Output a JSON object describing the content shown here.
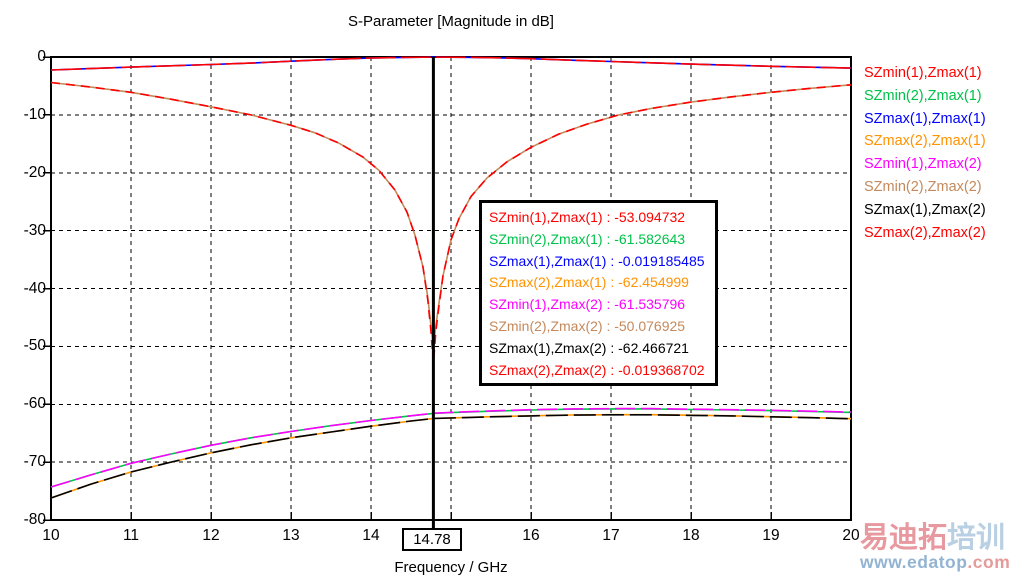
{
  "title": "S-Parameter [Magnitude in dB]",
  "xlabel": "Frequency / GHz",
  "marker": {
    "frequency_ghz": "14.78"
  },
  "colors": {
    "red": "#ff0000",
    "green": "#00c24a",
    "blue": "#0000ff",
    "orange": "#ff9300",
    "magenta": "#ff00ff",
    "tan": "#c4895c",
    "black": "#000000",
    "grid": "#000000",
    "frame": "#000000"
  },
  "legend": [
    {
      "label": "SZmin(1),Zmax(1)",
      "color": "#ff0000"
    },
    {
      "label": "SZmin(2),Zmax(1)",
      "color": "#00c24a"
    },
    {
      "label": "SZmax(1),Zmax(1)",
      "color": "#0000ff"
    },
    {
      "label": "SZmax(2),Zmax(1)",
      "color": "#ff9300"
    },
    {
      "label": "SZmin(1),Zmax(2)",
      "color": "#ff00ff"
    },
    {
      "label": "SZmin(2),Zmax(2)",
      "color": "#c4895c"
    },
    {
      "label": "SZmax(1),Zmax(2)",
      "color": "#000000"
    },
    {
      "label": "SZmax(2),Zmax(2)",
      "color": "#ff0000"
    }
  ],
  "value_box": [
    {
      "label": "SZmin(1),Zmax(1)",
      "value": "-53.094732",
      "color": "#ff0000"
    },
    {
      "label": "SZmin(2),Zmax(1)",
      "value": "-61.582643",
      "color": "#00c24a"
    },
    {
      "label": "SZmax(1),Zmax(1)",
      "value": "-0.019185485",
      "color": "#0000ff"
    },
    {
      "label": "SZmax(2),Zmax(1)",
      "value": "-62.454999",
      "color": "#ff9300"
    },
    {
      "label": "SZmin(1),Zmax(2)",
      "value": "-61.535796",
      "color": "#ff00ff"
    },
    {
      "label": "SZmin(2),Zmax(2)",
      "value": "-50.076925",
      "color": "#c4895c"
    },
    {
      "label": "SZmax(1),Zmax(2)",
      "value": "-62.466721",
      "color": "#000000"
    },
    {
      "label": "SZmax(2),Zmax(2)",
      "value": "-0.019368702",
      "color": "#ff0000"
    }
  ],
  "watermark": {
    "cn_pink": "易迪拓",
    "cn_blue": "培训",
    "url_main": "www.edatop",
    "url_tld": ".com",
    "pink_color": "#e8989f",
    "blue_color": "#b9cfe3",
    "url_main_color": "#92b4d2",
    "url_tld_color": "#e59a9a"
  },
  "chart_data": {
    "type": "line",
    "title": "S-Parameter [Magnitude in dB]",
    "xlabel": "Frequency / GHz",
    "ylabel": "",
    "xlim": [
      10,
      20
    ],
    "ylim": [
      -80,
      0
    ],
    "grid": true,
    "legend_position": "right-outside",
    "marker_x": 14.78,
    "x_ticks": [
      {
        "value": 10,
        "label": "10"
      },
      {
        "value": 11,
        "label": "11"
      },
      {
        "value": 12,
        "label": "12"
      },
      {
        "value": 13,
        "label": "13"
      },
      {
        "value": 14,
        "label": "14"
      },
      {
        "value": 15,
        "label": ""
      },
      {
        "value": 16,
        "label": "16"
      },
      {
        "value": 17,
        "label": "17"
      },
      {
        "value": 18,
        "label": "18"
      },
      {
        "value": 19,
        "label": "19"
      },
      {
        "value": 20,
        "label": "20"
      }
    ],
    "y_ticks": [
      {
        "value": 0,
        "label": "0"
      },
      {
        "value": -10,
        "label": "-10"
      },
      {
        "value": -20,
        "label": "-20"
      },
      {
        "value": -30,
        "label": "-30"
      },
      {
        "value": -40,
        "label": "-40"
      },
      {
        "value": -50,
        "label": "-50"
      },
      {
        "value": -60,
        "label": "-60"
      },
      {
        "value": -70,
        "label": "-70"
      },
      {
        "value": -80,
        "label": "-80"
      }
    ],
    "series": [
      {
        "name": "SZmax(1),Zmax(1)",
        "color": "#0000ff",
        "dash": "",
        "marker_value": -0.019185485,
        "points": [
          [
            10,
            -2.25
          ],
          [
            11,
            -1.75
          ],
          [
            12,
            -1.3
          ],
          [
            12.5,
            -1.05
          ],
          [
            13,
            -0.72
          ],
          [
            13.5,
            -0.42
          ],
          [
            14,
            -0.18
          ],
          [
            14.4,
            -0.07
          ],
          [
            14.78,
            -0.019
          ],
          [
            15.2,
            -0.05
          ],
          [
            15.6,
            -0.14
          ],
          [
            16,
            -0.3
          ],
          [
            16.5,
            -0.55
          ],
          [
            17,
            -0.78
          ],
          [
            17.5,
            -1.0
          ],
          [
            18,
            -1.22
          ],
          [
            18.5,
            -1.42
          ],
          [
            19,
            -1.6
          ],
          [
            19.5,
            -1.76
          ],
          [
            20,
            -1.92
          ]
        ]
      },
      {
        "name": "SZmax(2),Zmax(2)",
        "color": "#ff0000",
        "dash": "30 5",
        "marker_value": -0.019368702,
        "points": [
          [
            10,
            -2.25
          ],
          [
            11,
            -1.75
          ],
          [
            12,
            -1.3
          ],
          [
            12.5,
            -1.05
          ],
          [
            13,
            -0.72
          ],
          [
            13.5,
            -0.42
          ],
          [
            14,
            -0.18
          ],
          [
            14.4,
            -0.07
          ],
          [
            14.78,
            -0.019
          ],
          [
            15.2,
            -0.05
          ],
          [
            15.6,
            -0.14
          ],
          [
            16,
            -0.3
          ],
          [
            16.5,
            -0.55
          ],
          [
            17,
            -0.78
          ],
          [
            17.5,
            -1.0
          ],
          [
            18,
            -1.22
          ],
          [
            18.5,
            -1.42
          ],
          [
            19,
            -1.6
          ],
          [
            19.5,
            -1.76
          ],
          [
            20,
            -1.92
          ]
        ]
      },
      {
        "name": "SZmin(2),Zmax(2)",
        "color": "#c4895c",
        "dash": "",
        "marker_value": -50.076925,
        "points": [
          [
            10,
            -4.4
          ],
          [
            10.5,
            -5.2
          ],
          [
            11,
            -6.1
          ],
          [
            11.5,
            -7.3
          ],
          [
            12,
            -8.6
          ],
          [
            12.5,
            -10.0
          ],
          [
            13,
            -11.8
          ],
          [
            13.3,
            -13.1
          ],
          [
            13.6,
            -14.9
          ],
          [
            13.9,
            -17.3
          ],
          [
            14.1,
            -19.6
          ],
          [
            14.3,
            -23.0
          ],
          [
            14.45,
            -26.8
          ],
          [
            14.55,
            -30.8
          ],
          [
            14.65,
            -36.3
          ],
          [
            14.71,
            -41.5
          ],
          [
            14.75,
            -46.5
          ],
          [
            14.78,
            -50.08
          ],
          [
            14.81,
            -46.5
          ],
          [
            14.85,
            -42.5
          ],
          [
            14.9,
            -37.8
          ],
          [
            15.0,
            -31.6
          ],
          [
            15.1,
            -27.9
          ],
          [
            15.25,
            -24.1
          ],
          [
            15.45,
            -20.9
          ],
          [
            15.7,
            -18.1
          ],
          [
            16,
            -15.6
          ],
          [
            16.35,
            -13.3
          ],
          [
            16.7,
            -11.6
          ],
          [
            17.1,
            -10.0
          ],
          [
            17.5,
            -8.9
          ],
          [
            18,
            -7.8
          ],
          [
            18.5,
            -6.9
          ],
          [
            19,
            -6.1
          ],
          [
            19.5,
            -5.4
          ],
          [
            20,
            -4.8
          ]
        ]
      },
      {
        "name": "SZmin(1),Zmax(1)",
        "color": "#ff0000",
        "dash": "9 6",
        "marker_value": -53.094732,
        "points": [
          [
            10,
            -4.4
          ],
          [
            10.5,
            -5.2
          ],
          [
            11,
            -6.1
          ],
          [
            11.5,
            -7.3
          ],
          [
            12,
            -8.6
          ],
          [
            12.5,
            -10.0
          ],
          [
            13,
            -11.8
          ],
          [
            13.3,
            -13.1
          ],
          [
            13.6,
            -14.9
          ],
          [
            13.9,
            -17.3
          ],
          [
            14.1,
            -19.6
          ],
          [
            14.3,
            -23.0
          ],
          [
            14.45,
            -26.8
          ],
          [
            14.55,
            -30.8
          ],
          [
            14.65,
            -36.3
          ],
          [
            14.71,
            -42.0
          ],
          [
            14.75,
            -47.5
          ],
          [
            14.78,
            -53.09
          ],
          [
            14.81,
            -47.5
          ],
          [
            14.85,
            -43.0
          ],
          [
            14.9,
            -37.8
          ],
          [
            15.0,
            -31.6
          ],
          [
            15.1,
            -27.9
          ],
          [
            15.25,
            -24.1
          ],
          [
            15.45,
            -20.9
          ],
          [
            15.7,
            -18.1
          ],
          [
            16,
            -15.6
          ],
          [
            16.35,
            -13.3
          ],
          [
            16.7,
            -11.6
          ],
          [
            17.1,
            -10.0
          ],
          [
            17.5,
            -8.9
          ],
          [
            18,
            -7.8
          ],
          [
            18.5,
            -6.9
          ],
          [
            19,
            -6.1
          ],
          [
            19.5,
            -5.4
          ],
          [
            20,
            -4.8
          ]
        ]
      },
      {
        "name": "SZmin(2),Zmax(1)",
        "color": "#00c24a",
        "dash": "",
        "marker_value": -61.582643,
        "points": [
          [
            10,
            -74.3
          ],
          [
            10.5,
            -72.2
          ],
          [
            11,
            -70.2
          ],
          [
            11.5,
            -68.6
          ],
          [
            12,
            -67.1
          ],
          [
            12.5,
            -65.8
          ],
          [
            13,
            -64.7
          ],
          [
            13.5,
            -63.7
          ],
          [
            14,
            -62.8
          ],
          [
            14.5,
            -62.0
          ],
          [
            14.78,
            -61.58
          ],
          [
            15,
            -61.45
          ],
          [
            15.5,
            -61.2
          ],
          [
            16,
            -61.0
          ],
          [
            16.5,
            -60.85
          ],
          [
            17,
            -60.8
          ],
          [
            17.5,
            -60.8
          ],
          [
            18,
            -60.9
          ],
          [
            18.5,
            -61.0
          ],
          [
            19,
            -61.1
          ],
          [
            19.5,
            -61.25
          ],
          [
            20,
            -61.4
          ]
        ]
      },
      {
        "name": "SZmin(1),Zmax(2)",
        "color": "#ff00ff",
        "dash": "20 6",
        "marker_value": -61.535796,
        "points": [
          [
            10,
            -74.3
          ],
          [
            10.5,
            -72.2
          ],
          [
            11,
            -70.2
          ],
          [
            11.5,
            -68.6
          ],
          [
            12,
            -67.1
          ],
          [
            12.5,
            -65.8
          ],
          [
            13,
            -64.7
          ],
          [
            13.5,
            -63.7
          ],
          [
            14,
            -62.8
          ],
          [
            14.5,
            -62.0
          ],
          [
            14.78,
            -61.54
          ],
          [
            15,
            -61.4
          ],
          [
            15.5,
            -61.15
          ],
          [
            16,
            -60.95
          ],
          [
            16.5,
            -60.8
          ],
          [
            17,
            -60.75
          ],
          [
            17.5,
            -60.75
          ],
          [
            18,
            -60.85
          ],
          [
            18.5,
            -60.95
          ],
          [
            19,
            -61.05
          ],
          [
            19.5,
            -61.2
          ],
          [
            20,
            -61.35
          ]
        ]
      },
      {
        "name": "SZmax(2),Zmax(1)",
        "color": "#ff9300",
        "dash": "",
        "marker_value": -62.454999,
        "points": [
          [
            10,
            -76.2
          ],
          [
            10.5,
            -73.8
          ],
          [
            11,
            -71.7
          ],
          [
            11.5,
            -70.0
          ],
          [
            12,
            -68.4
          ],
          [
            12.5,
            -67.0
          ],
          [
            13,
            -65.8
          ],
          [
            13.5,
            -64.8
          ],
          [
            14,
            -63.8
          ],
          [
            14.5,
            -62.9
          ],
          [
            14.78,
            -62.45
          ],
          [
            15,
            -62.35
          ],
          [
            15.5,
            -62.15
          ],
          [
            16,
            -62.0
          ],
          [
            16.5,
            -61.85
          ],
          [
            17,
            -61.8
          ],
          [
            17.5,
            -61.8
          ],
          [
            18,
            -61.9
          ],
          [
            18.5,
            -62.0
          ],
          [
            19,
            -62.15
          ],
          [
            19.5,
            -62.3
          ],
          [
            20,
            -62.5
          ]
        ]
      },
      {
        "name": "SZmax(1),Zmax(2)",
        "color": "#000000",
        "dash": "22 6",
        "marker_value": -62.466721,
        "points": [
          [
            10,
            -76.2
          ],
          [
            10.5,
            -73.8
          ],
          [
            11,
            -71.7
          ],
          [
            11.5,
            -70.0
          ],
          [
            12,
            -68.4
          ],
          [
            12.5,
            -67.0
          ],
          [
            13,
            -65.8
          ],
          [
            13.5,
            -64.8
          ],
          [
            14,
            -63.8
          ],
          [
            14.5,
            -62.9
          ],
          [
            14.78,
            -62.47
          ],
          [
            15,
            -62.37
          ],
          [
            15.5,
            -62.17
          ],
          [
            16,
            -62.02
          ],
          [
            16.5,
            -61.87
          ],
          [
            17,
            -61.82
          ],
          [
            17.5,
            -61.82
          ],
          [
            18,
            -61.92
          ],
          [
            18.5,
            -62.02
          ],
          [
            19,
            -62.17
          ],
          [
            19.5,
            -62.32
          ],
          [
            20,
            -62.52
          ]
        ]
      }
    ]
  }
}
